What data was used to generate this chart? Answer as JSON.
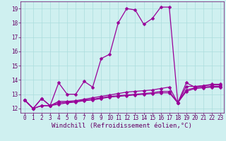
{
  "xlabel": "Windchill (Refroidissement éolien,°C)",
  "bg_color": "#cff0f0",
  "grid_color": "#aadddd",
  "line_color": "#990099",
  "xlim": [
    -0.5,
    23.4
  ],
  "ylim": [
    11.7,
    19.5
  ],
  "xticks": [
    0,
    1,
    2,
    3,
    4,
    5,
    6,
    7,
    8,
    9,
    10,
    11,
    12,
    13,
    14,
    15,
    16,
    17,
    18,
    19,
    20,
    21,
    22,
    23
  ],
  "yticks": [
    12,
    13,
    14,
    15,
    16,
    17,
    18,
    19
  ],
  "series": [
    [
      12.6,
      12.0,
      12.7,
      12.2,
      13.8,
      13.0,
      13.0,
      13.9,
      13.5,
      15.5,
      15.8,
      18.0,
      19.0,
      18.9,
      17.9,
      18.3,
      19.1,
      19.1,
      12.4,
      13.8,
      13.5,
      13.6,
      13.7,
      13.7
    ],
    [
      12.6,
      12.0,
      12.7,
      12.2,
      12.5,
      12.5,
      12.55,
      12.65,
      12.75,
      12.85,
      12.95,
      13.05,
      13.15,
      13.2,
      13.25,
      13.3,
      13.4,
      13.5,
      12.4,
      13.55,
      13.55,
      13.6,
      13.65,
      13.65
    ],
    [
      12.6,
      12.0,
      12.2,
      12.2,
      12.4,
      12.45,
      12.5,
      12.6,
      12.65,
      12.75,
      12.85,
      12.9,
      12.95,
      13.0,
      13.05,
      13.1,
      13.2,
      13.2,
      12.4,
      13.3,
      13.45,
      13.5,
      13.55,
      13.55
    ],
    [
      12.6,
      12.0,
      12.2,
      12.2,
      12.3,
      12.4,
      12.45,
      12.55,
      12.6,
      12.7,
      12.8,
      12.85,
      12.9,
      12.95,
      13.0,
      13.05,
      13.1,
      13.1,
      12.4,
      13.2,
      13.4,
      13.45,
      13.5,
      13.5
    ]
  ],
  "marker": "D",
  "marker_size": 2.5,
  "linewidth": 0.9,
  "font_color": "#660066",
  "tick_fontsize": 5.5,
  "label_fontsize": 6.5
}
